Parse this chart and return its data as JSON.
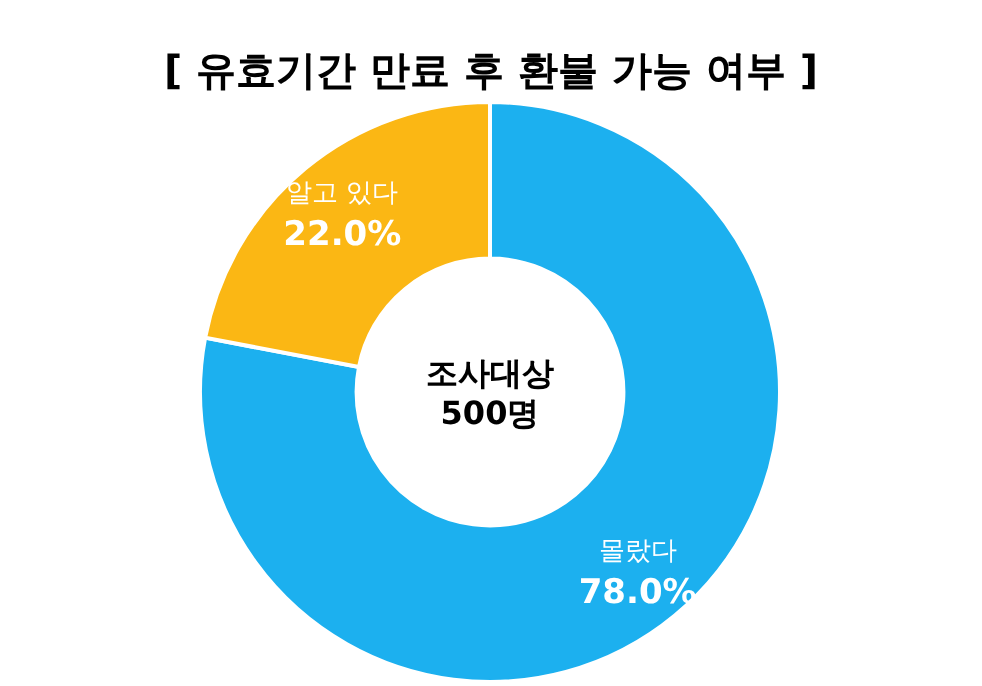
{
  "chart_data": {
    "type": "donut",
    "title": "[ 유효기간 만료 후 환불 가능 여부 ]",
    "categories": [
      "몰랐다",
      "알고 있다"
    ],
    "values": [
      78.0,
      22.0
    ],
    "colors": [
      "#1cb0ef",
      "#fbb714"
    ],
    "value_labels": [
      "78.0%",
      "22.0%"
    ],
    "annotations": [
      "조사대상",
      "500명"
    ]
  }
}
